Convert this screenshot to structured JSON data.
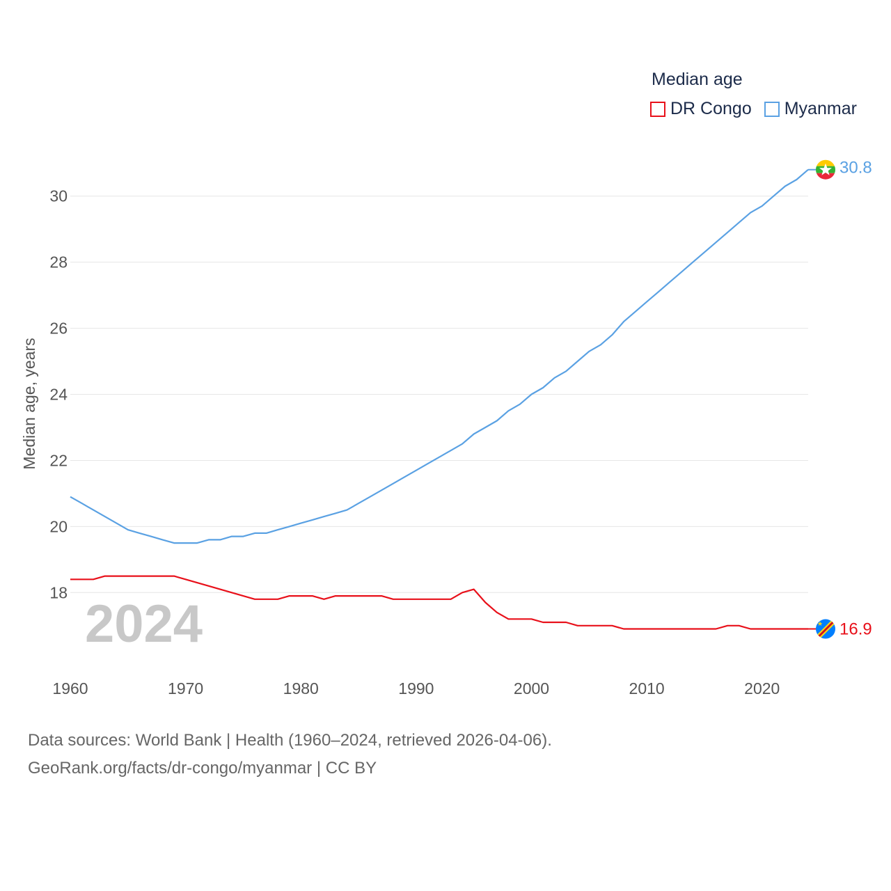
{
  "legend": {
    "title": "Median age",
    "items": [
      {
        "label": "DR Congo",
        "color": "#e8101a"
      },
      {
        "label": "Myanmar",
        "color": "#5aa1e3"
      }
    ]
  },
  "footer": {
    "line1": "Data sources: World Bank | Health (1960–2024, retrieved 2026-04-06).",
    "line2": "GeoRank.org/facts/dr-congo/myanmar | CC BY"
  },
  "chart_data": {
    "type": "line",
    "title": "Median age",
    "xlabel": "",
    "ylabel": "Median age, years",
    "watermark_year": "2024",
    "xlim": [
      1960,
      2024
    ],
    "ylim": [
      16.3,
      31.3
    ],
    "x_ticks": [
      1960,
      1970,
      1980,
      1990,
      2000,
      2010,
      2020
    ],
    "y_ticks": [
      18,
      20,
      22,
      24,
      26,
      28,
      30
    ],
    "grid": true,
    "legend_position": "top-right",
    "x": [
      1960,
      1961,
      1962,
      1963,
      1964,
      1965,
      1966,
      1967,
      1968,
      1969,
      1970,
      1971,
      1972,
      1973,
      1974,
      1975,
      1976,
      1977,
      1978,
      1979,
      1980,
      1981,
      1982,
      1983,
      1984,
      1985,
      1986,
      1987,
      1988,
      1989,
      1990,
      1991,
      1992,
      1993,
      1994,
      1995,
      1996,
      1997,
      1998,
      1999,
      2000,
      2001,
      2002,
      2003,
      2004,
      2005,
      2006,
      2007,
      2008,
      2009,
      2010,
      2011,
      2012,
      2013,
      2014,
      2015,
      2016,
      2017,
      2018,
      2019,
      2020,
      2021,
      2022,
      2023,
      2024
    ],
    "series": [
      {
        "name": "DR Congo",
        "color": "#e8101a",
        "end_label": "16.9",
        "values": [
          18.4,
          18.4,
          18.4,
          18.5,
          18.5,
          18.5,
          18.5,
          18.5,
          18.5,
          18.5,
          18.4,
          18.3,
          18.2,
          18.1,
          18.0,
          17.9,
          17.8,
          17.8,
          17.8,
          17.9,
          17.9,
          17.9,
          17.8,
          17.9,
          17.9,
          17.9,
          17.9,
          17.9,
          17.8,
          17.8,
          17.8,
          17.8,
          17.8,
          17.8,
          18.0,
          18.1,
          17.7,
          17.4,
          17.2,
          17.2,
          17.2,
          17.1,
          17.1,
          17.1,
          17.0,
          17.0,
          17.0,
          17.0,
          16.9,
          16.9,
          16.9,
          16.9,
          16.9,
          16.9,
          16.9,
          16.9,
          16.9,
          17.0,
          17.0,
          16.9,
          16.9,
          16.9,
          16.9,
          16.9,
          16.9
        ]
      },
      {
        "name": "Myanmar",
        "color": "#5aa1e3",
        "end_label": "30.8",
        "values": [
          20.9,
          20.7,
          20.5,
          20.3,
          20.1,
          19.9,
          19.8,
          19.7,
          19.6,
          19.5,
          19.5,
          19.5,
          19.6,
          19.6,
          19.7,
          19.7,
          19.8,
          19.8,
          19.9,
          20.0,
          20.1,
          20.2,
          20.3,
          20.4,
          20.5,
          20.7,
          20.9,
          21.1,
          21.3,
          21.5,
          21.7,
          21.9,
          22.1,
          22.3,
          22.5,
          22.8,
          23.0,
          23.2,
          23.5,
          23.7,
          24.0,
          24.2,
          24.5,
          24.7,
          25.0,
          25.3,
          25.5,
          25.8,
          26.2,
          26.5,
          26.8,
          27.1,
          27.4,
          27.7,
          28.0,
          28.3,
          28.6,
          28.9,
          29.2,
          29.5,
          29.7,
          30.0,
          30.3,
          30.5,
          30.8
        ]
      }
    ]
  }
}
